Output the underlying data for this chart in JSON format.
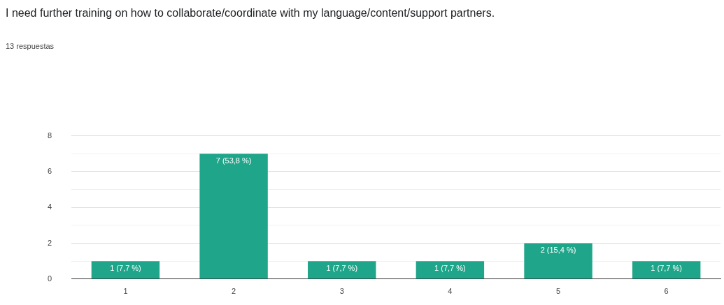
{
  "chart_data": {
    "type": "bar",
    "title": "I need further training on how to collaborate/coordinate with my language/content/support partners.",
    "subtitle": "13 respuestas",
    "categories": [
      "1",
      "2",
      "3",
      "4",
      "5",
      "6"
    ],
    "values": [
      1,
      7,
      1,
      1,
      2,
      1
    ],
    "value_labels": [
      "1 (7,7 %)",
      "7 (53,8 %)",
      "1 (7,7 %)",
      "1 (7,7 %)",
      "2 (15,4 %)",
      "1 (7,7 %)"
    ],
    "color": "#1fa68a",
    "ylim": [
      0,
      8
    ],
    "yticks": [
      0,
      {
        "value": 1,
        "label": null
      },
      2,
      {
        "value": 3,
        "label": null
      },
      4,
      {
        "value": 5,
        "label": null
      },
      6,
      {
        "value": 7,
        "label": null
      },
      8
    ],
    "grid": "y",
    "legend": false
  }
}
